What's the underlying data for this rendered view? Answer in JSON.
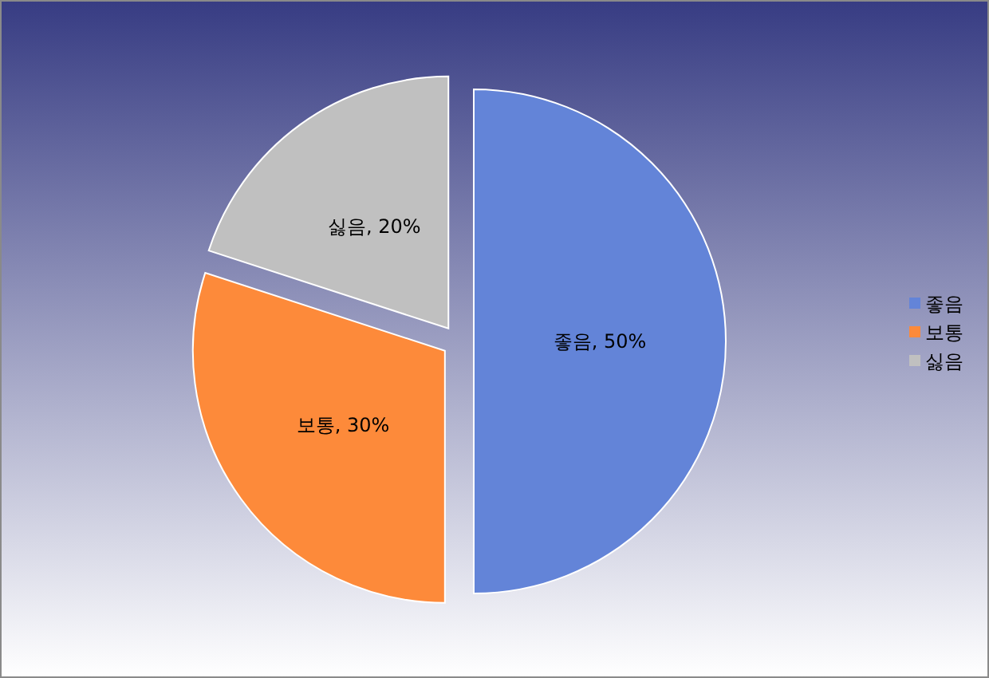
{
  "chart_data": {
    "type": "pie",
    "categories": [
      "좋음",
      "보통",
      "싫음"
    ],
    "values": [
      50,
      30,
      20
    ],
    "value_labels": [
      "좋음, 50%",
      "보통, 30%",
      "싫음, 20%"
    ],
    "colors": [
      "#6384d8",
      "#fd8a3a",
      "#c0c0c0"
    ],
    "legend": "right"
  }
}
